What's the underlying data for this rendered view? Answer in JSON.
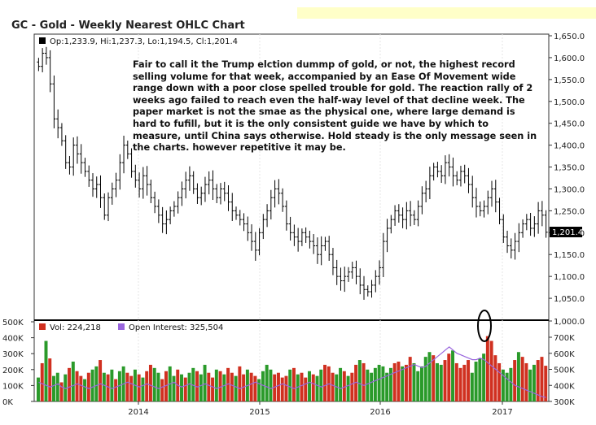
{
  "title": "GC - Gold - Weekly Nearest OHLC Chart",
  "annotation": "Fair to call it the Trump elction dummp of gold, or not, the highest record selling volume for that week, accompanied by an Ease Of Movement wide range down with a poor close spelled trouble for gold.  The reaction rally of 2 weeks ago failed to reach even the half-way level of that decline week.  The paper market is not the smae as the physical one, where large demand is hard to fufill, but it is the only consistent guide we have by which to measure, until China says otherwise.  Hold steady is the only message seen in the charts. however repetitive it may be.",
  "colors": {
    "volume_up": "#2a9a2a",
    "volume_down": "#d03020",
    "open_interest": "#9966dd",
    "price_bars": "#000000"
  },
  "chart_data": {
    "type": "bar",
    "price_panel": {
      "ohlc_legend": "Op:1,233.9, Hi:1,237.3, Lo:1,194.5, Cl:1,201.4",
      "last_price_label": "1,201.4",
      "ylim": [
        1000,
        1650
      ],
      "y_ticks": [
        "1,650.0",
        "1,600.0",
        "1,550.0",
        "1,500.0",
        "1,450.0",
        "1,400.0",
        "1,350.0",
        "1,300.0",
        "1,250.0",
        "1,200.0",
        "1,150.0",
        "1,100.0",
        "1,050.0",
        "1,000.0"
      ],
      "close_series_weekly": [
        1580,
        1610,
        1600,
        1540,
        1460,
        1440,
        1410,
        1360,
        1350,
        1400,
        1380,
        1360,
        1340,
        1320,
        1300,
        1310,
        1280,
        1240,
        1280,
        1300,
        1320,
        1360,
        1400,
        1380,
        1340,
        1320,
        1300,
        1330,
        1310,
        1280,
        1260,
        1240,
        1220,
        1230,
        1250,
        1260,
        1280,
        1300,
        1320,
        1330,
        1300,
        1280,
        1290,
        1310,
        1320,
        1300,
        1280,
        1300,
        1290,
        1270,
        1250,
        1240,
        1230,
        1220,
        1200,
        1180,
        1160,
        1200,
        1230,
        1250,
        1280,
        1300,
        1290,
        1260,
        1220,
        1200,
        1190,
        1180,
        1200,
        1190,
        1180,
        1170,
        1150,
        1170,
        1180,
        1150,
        1120,
        1100,
        1090,
        1100,
        1110,
        1120,
        1100,
        1080,
        1070,
        1065,
        1080,
        1100,
        1120,
        1180,
        1210,
        1230,
        1250,
        1240,
        1230,
        1250,
        1240,
        1230,
        1260,
        1290,
        1300,
        1330,
        1350,
        1340,
        1330,
        1360,
        1350,
        1330,
        1320,
        1340,
        1330,
        1310,
        1280,
        1260,
        1250,
        1260,
        1280,
        1300,
        1270,
        1230,
        1190,
        1170,
        1160,
        1180,
        1200,
        1220,
        1230,
        1210,
        1220,
        1250,
        1240,
        1201
      ]
    },
    "volume_panel": {
      "volume_legend": "Vol: 224,218",
      "open_interest_legend": "Open Interest: 325,504",
      "left_ticks": [
        "500K",
        "400K",
        "300K",
        "200K",
        "100K",
        "0K"
      ],
      "right_ticks": [
        "1,000.0",
        "700K",
        "600K",
        "500K",
        "400K",
        "300K"
      ],
      "volume_k": [
        150,
        240,
        380,
        270,
        160,
        180,
        120,
        170,
        210,
        250,
        190,
        160,
        140,
        180,
        200,
        220,
        260,
        180,
        170,
        200,
        140,
        190,
        220,
        180,
        160,
        200,
        170,
        150,
        190,
        230,
        210,
        180,
        140,
        190,
        220,
        160,
        200,
        170,
        150,
        180,
        210,
        190,
        170,
        230,
        180,
        150,
        200,
        190,
        170,
        210,
        180,
        160,
        220,
        170,
        200,
        180,
        160,
        140,
        190,
        230,
        200,
        170,
        180,
        150,
        160,
        200,
        210,
        170,
        180,
        150,
        190,
        170,
        160,
        200,
        230,
        220,
        180,
        170,
        210,
        190,
        160,
        180,
        230,
        260,
        240,
        200,
        180,
        210,
        230,
        220,
        180,
        210,
        240,
        250,
        220,
        230,
        280,
        240,
        190,
        220,
        280,
        310,
        290,
        240,
        230,
        260,
        300,
        320,
        240,
        210,
        230,
        260,
        180,
        250,
        270,
        300,
        410,
        380,
        290,
        240,
        200,
        180,
        210,
        260,
        310,
        280,
        240,
        200,
        230,
        260,
        280,
        224
      ],
      "volume_up": [
        true,
        false,
        true,
        false,
        true,
        true,
        false,
        true,
        false,
        true,
        false,
        false,
        true,
        false,
        true,
        true,
        false,
        true,
        false,
        true,
        false,
        true,
        true,
        false,
        false,
        true,
        false,
        true,
        false,
        false,
        true,
        true,
        false,
        false,
        true,
        true,
        false,
        true,
        false,
        true,
        true,
        false,
        true,
        true,
        false,
        false,
        true,
        false,
        true,
        false,
        false,
        true,
        false,
        false,
        true,
        false,
        false,
        true,
        true,
        true,
        true,
        false,
        false,
        false,
        false,
        true,
        false,
        true,
        false,
        false,
        true,
        false,
        true,
        true,
        false,
        false,
        false,
        true,
        true,
        false,
        true,
        false,
        false,
        true,
        false,
        true,
        true,
        true,
        true,
        true,
        true,
        true,
        false,
        false,
        true,
        false,
        false,
        true,
        true,
        true,
        true,
        true,
        false,
        true,
        true,
        false,
        false,
        true,
        false,
        false,
        false,
        false,
        true,
        true,
        true,
        true,
        false,
        false,
        false,
        false,
        true,
        true,
        true,
        false,
        true,
        false,
        false,
        true,
        true,
        false,
        false,
        false
      ],
      "open_interest_k": [
        420,
        410,
        400,
        390,
        400,
        410,
        390,
        380,
        390,
        400,
        410,
        400,
        390,
        380,
        390,
        400,
        410,
        400,
        390,
        380,
        390,
        400,
        410,
        420,
        410,
        400,
        390,
        400,
        410,
        400,
        390,
        380,
        390,
        400,
        410,
        420,
        400,
        390,
        400,
        410,
        400,
        390,
        400,
        410,
        400,
        390,
        380,
        390,
        400,
        410,
        400,
        390,
        380,
        390,
        400,
        410,
        420,
        410,
        400,
        390,
        380,
        390,
        400,
        410,
        400,
        390,
        380,
        390,
        400,
        410,
        420,
        410,
        400,
        390,
        400,
        410,
        400,
        390,
        380,
        390,
        400,
        410,
        420,
        410,
        400,
        410,
        420,
        430,
        440,
        450,
        460,
        470,
        480,
        490,
        500,
        510,
        520,
        530,
        520,
        510,
        520,
        540,
        560,
        580,
        600,
        620,
        640,
        620,
        600,
        590,
        580,
        570,
        560,
        560,
        570,
        560,
        540,
        520,
        500,
        480,
        460,
        440,
        420,
        400,
        390,
        380,
        370,
        360,
        350,
        340,
        330,
        325
      ]
    },
    "x_ticks": [
      "2014",
      "2015",
      "2016",
      "2017"
    ]
  }
}
